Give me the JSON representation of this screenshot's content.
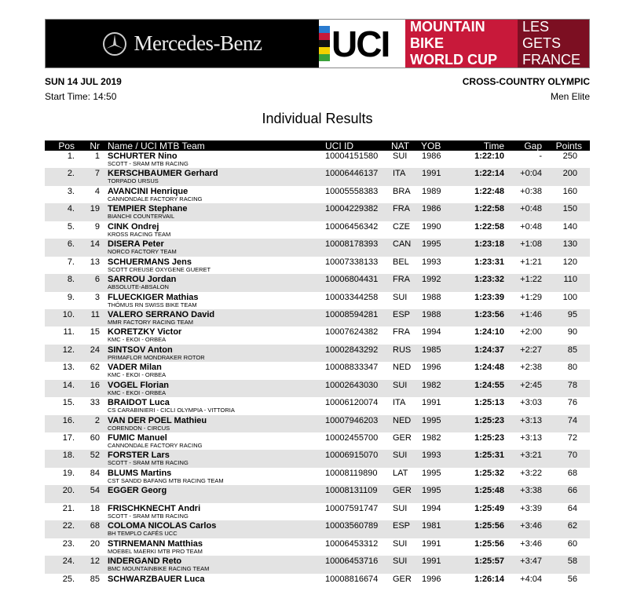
{
  "banner": {
    "sponsor": "Mercedes-Benz",
    "uci": "UCI",
    "series_line1": "MOUNTAIN BIKE",
    "series_line2": "WORLD CUP",
    "venue_line1": "LES GETS",
    "venue_line2": "FRANCE",
    "colors": {
      "series_red": "#c8193a",
      "venue_red": "#7c0f22"
    }
  },
  "header": {
    "date": "SUN 14 JUL 2019",
    "start_time": "Start Time: 14:50",
    "event": "CROSS-COUNTRY OLYMPIC",
    "category": "Men Elite",
    "title": "Individual Results"
  },
  "table": {
    "columns": {
      "pos": "Pos",
      "nr": "Nr",
      "name": "Name / UCI MTB Team",
      "uci_id": "UCI ID",
      "nat": "NAT",
      "yob": "YOB",
      "time": "Time",
      "gap": "Gap",
      "points": "Points"
    },
    "rows": [
      {
        "pos": "1.",
        "nr": "1",
        "name": "SCHURTER Nino",
        "team": "SCOTT - SRAM MTB RACING",
        "uci_id": "10004151580",
        "nat": "SUI",
        "yob": "1986",
        "time": "1:22:10",
        "gap": "-",
        "points": "250"
      },
      {
        "pos": "2.",
        "nr": "7",
        "name": "KERSCHBAUMER Gerhard",
        "team": "TORPADO URSUS",
        "uci_id": "10006446137",
        "nat": "ITA",
        "yob": "1991",
        "time": "1:22:14",
        "gap": "+0:04",
        "points": "200"
      },
      {
        "pos": "3.",
        "nr": "4",
        "name": "AVANCINI Henrique",
        "team": "CANNONDALE FACTORY RACING",
        "uci_id": "10005558383",
        "nat": "BRA",
        "yob": "1989",
        "time": "1:22:48",
        "gap": "+0:38",
        "points": "160"
      },
      {
        "pos": "4.",
        "nr": "19",
        "name": "TEMPIER Stephane",
        "team": "BIANCHI COUNTERVAIL",
        "uci_id": "10004229382",
        "nat": "FRA",
        "yob": "1986",
        "time": "1:22:58",
        "gap": "+0:48",
        "points": "150"
      },
      {
        "pos": "5.",
        "nr": "9",
        "name": "CINK Ondrej",
        "team": "KROSS RACING TEAM",
        "uci_id": "10006456342",
        "nat": "CZE",
        "yob": "1990",
        "time": "1:22:58",
        "gap": "+0:48",
        "points": "140"
      },
      {
        "pos": "6.",
        "nr": "14",
        "name": "DISERA Peter",
        "team": "NORCO FACTORY TEAM",
        "uci_id": "10008178393",
        "nat": "CAN",
        "yob": "1995",
        "time": "1:23:18",
        "gap": "+1:08",
        "points": "130"
      },
      {
        "pos": "7.",
        "nr": "13",
        "name": "SCHUERMANS Jens",
        "team": "SCOTT CREUSE OXYGENE GUERET",
        "uci_id": "10007338133",
        "nat": "BEL",
        "yob": "1993",
        "time": "1:23:31",
        "gap": "+1:21",
        "points": "120"
      },
      {
        "pos": "8.",
        "nr": "6",
        "name": "SARROU Jordan",
        "team": "ABSOLUTE-ABSALON",
        "uci_id": "10006804431",
        "nat": "FRA",
        "yob": "1992",
        "time": "1:23:32",
        "gap": "+1:22",
        "points": "110"
      },
      {
        "pos": "9.",
        "nr": "3",
        "name": "FLUECKIGER Mathias",
        "team": "THÖMUS RN SWISS BIKE TEAM",
        "uci_id": "10003344258",
        "nat": "SUI",
        "yob": "1988",
        "time": "1:23:39",
        "gap": "+1:29",
        "points": "100"
      },
      {
        "pos": "10.",
        "nr": "11",
        "name": "VALERO SERRANO David",
        "team": "MMR FACTORY RACING TEAM",
        "uci_id": "10008594281",
        "nat": "ESP",
        "yob": "1988",
        "time": "1:23:56",
        "gap": "+1:46",
        "points": "95"
      },
      {
        "pos": "11.",
        "nr": "15",
        "name": "KORETZKY Victor",
        "team": "KMC - EKOI - ORBEA",
        "uci_id": "10007624382",
        "nat": "FRA",
        "yob": "1994",
        "time": "1:24:10",
        "gap": "+2:00",
        "points": "90"
      },
      {
        "pos": "12.",
        "nr": "24",
        "name": "SINTSOV Anton",
        "team": "PRIMAFLOR MONDRAKER ROTOR",
        "uci_id": "10002843292",
        "nat": "RUS",
        "yob": "1985",
        "time": "1:24:37",
        "gap": "+2:27",
        "points": "85"
      },
      {
        "pos": "13.",
        "nr": "62",
        "name": "VADER Milan",
        "team": "KMC - EKOI - ORBEA",
        "uci_id": "10008833347",
        "nat": "NED",
        "yob": "1996",
        "time": "1:24:48",
        "gap": "+2:38",
        "points": "80"
      },
      {
        "pos": "14.",
        "nr": "16",
        "name": "VOGEL Florian",
        "team": "KMC - EKOI - ORBEA",
        "uci_id": "10002643030",
        "nat": "SUI",
        "yob": "1982",
        "time": "1:24:55",
        "gap": "+2:45",
        "points": "78"
      },
      {
        "pos": "15.",
        "nr": "33",
        "name": "BRAIDOT Luca",
        "team": "CS CARABINIERI - CICLI OLYMPIA - VITTORIA",
        "uci_id": "10006120074",
        "nat": "ITA",
        "yob": "1991",
        "time": "1:25:13",
        "gap": "+3:03",
        "points": "76"
      },
      {
        "pos": "16.",
        "nr": "2",
        "name": "VAN DER POEL Mathieu",
        "team": "CORENDON - CIRCUS",
        "uci_id": "10007946203",
        "nat": "NED",
        "yob": "1995",
        "time": "1:25:23",
        "gap": "+3:13",
        "points": "74"
      },
      {
        "pos": "17.",
        "nr": "60",
        "name": "FUMIC Manuel",
        "team": "CANNONDALE FACTORY RACING",
        "uci_id": "10002455700",
        "nat": "GER",
        "yob": "1982",
        "time": "1:25:23",
        "gap": "+3:13",
        "points": "72"
      },
      {
        "pos": "18.",
        "nr": "52",
        "name": "FORSTER Lars",
        "team": "SCOTT - SRAM MTB RACING",
        "uci_id": "10006915070",
        "nat": "SUI",
        "yob": "1993",
        "time": "1:25:31",
        "gap": "+3:21",
        "points": "70"
      },
      {
        "pos": "19.",
        "nr": "84",
        "name": "BLUMS Martins",
        "team": "CST SANDD BAFANG MTB RACING TEAM",
        "uci_id": "10008119890",
        "nat": "LAT",
        "yob": "1995",
        "time": "1:25:32",
        "gap": "+3:22",
        "points": "68"
      },
      {
        "pos": "20.",
        "nr": "54",
        "name": "EGGER Georg",
        "team": "",
        "uci_id": "10008131109",
        "nat": "GER",
        "yob": "1995",
        "time": "1:25:48",
        "gap": "+3:38",
        "points": "66"
      },
      {
        "pos": "21.",
        "nr": "18",
        "name": "FRISCHKNECHT Andri",
        "team": "SCOTT - SRAM MTB RACING",
        "uci_id": "10007591747",
        "nat": "SUI",
        "yob": "1994",
        "time": "1:25:49",
        "gap": "+3:39",
        "points": "64"
      },
      {
        "pos": "22.",
        "nr": "68",
        "name": "COLOMA NICOLAS Carlos",
        "team": "BH TEMPLO CAFÉS UCC",
        "uci_id": "10003560789",
        "nat": "ESP",
        "yob": "1981",
        "time": "1:25:56",
        "gap": "+3:46",
        "points": "62"
      },
      {
        "pos": "23.",
        "nr": "20",
        "name": "STIRNEMANN Matthias",
        "team": "MOEBEL MAERKI MTB PRO TEAM",
        "uci_id": "10006453312",
        "nat": "SUI",
        "yob": "1991",
        "time": "1:25:56",
        "gap": "+3:46",
        "points": "60"
      },
      {
        "pos": "24.",
        "nr": "12",
        "name": "INDERGAND Reto",
        "team": "BMC MOUNTAINBIKE RACING TEAM",
        "uci_id": "10006453716",
        "nat": "SUI",
        "yob": "1991",
        "time": "1:25:57",
        "gap": "+3:47",
        "points": "58"
      },
      {
        "pos": "25.",
        "nr": "85",
        "name": "SCHWARZBAUER Luca",
        "team": "",
        "uci_id": "10008816674",
        "nat": "GER",
        "yob": "1996",
        "time": "1:26:14",
        "gap": "+4:04",
        "points": "56"
      }
    ]
  }
}
